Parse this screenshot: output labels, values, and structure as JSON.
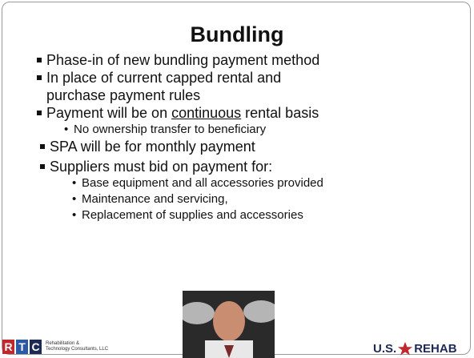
{
  "title": "Bundling",
  "bullets": [
    {
      "text": "Phase-in of new bundling payment method"
    },
    {
      "text": "In place of current capped rental and purchase payment rules"
    },
    {
      "parts": [
        "Payment will be on ",
        "continuous",
        " rental basis"
      ],
      "sub": [
        "No ownership transfer to beneficiary"
      ]
    },
    {
      "text": "SPA will be for monthly payment"
    },
    {
      "text": "Suppliers must bid on payment for:",
      "sub": [
        "Base equipment and all accessories provided",
        "Maintenance and servicing,",
        "Replacement of supplies and accessories"
      ]
    }
  ],
  "footer": {
    "rtc_letters": [
      "R",
      "T",
      "C"
    ],
    "rtc_line1": "Rehabilitation &",
    "rtc_line2": "Technology Consultants, LLC",
    "rehab_left": "U.S.",
    "rehab_right": "REHAB"
  }
}
